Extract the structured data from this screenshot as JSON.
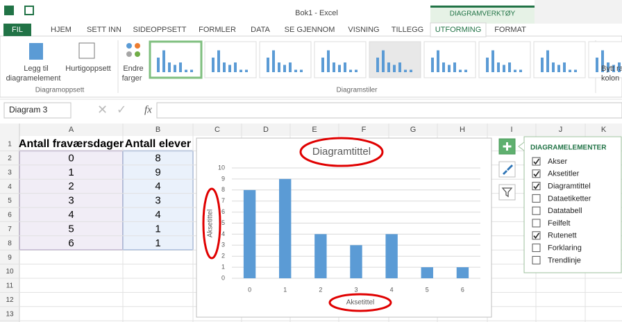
{
  "window": {
    "title": "Bok1 - Excel",
    "context_tab": "DIAGRAMVERKTØY"
  },
  "tabs": [
    "FIL",
    "HJEM",
    "SETT INN",
    "SIDEOPPSETT",
    "FORMLER",
    "DATA",
    "SE GJENNOM",
    "VISNING",
    "TILLEGG",
    "UTFORMING",
    "FORMAT"
  ],
  "active_tab": "UTFORMING",
  "ribbon": {
    "add_element": [
      "Legg til",
      "diagramelement"
    ],
    "quick_layout": "Hurtigoppsett",
    "group_layouts": "Diagramoppsett",
    "change_colors": [
      "Endre",
      "farger"
    ],
    "group_styles": "Diagramstiler",
    "switch": [
      "Bytt ra",
      "kolon"
    ]
  },
  "formula_bar": {
    "name_box": "Diagram 3",
    "fx": "fx"
  },
  "sheet": {
    "columns": [
      "A",
      "B",
      "C",
      "D",
      "E",
      "F",
      "G",
      "H",
      "I",
      "J",
      "K"
    ],
    "rows": [
      1,
      2,
      3,
      4,
      5,
      6,
      7,
      8,
      9,
      10,
      11,
      12,
      13
    ],
    "header": [
      "Antall fraværsdager",
      "Antall elever"
    ],
    "data": [
      [
        0,
        8
      ],
      [
        1,
        9
      ],
      [
        2,
        4
      ],
      [
        3,
        3
      ],
      [
        4,
        4
      ],
      [
        5,
        1
      ],
      [
        6,
        1
      ]
    ]
  },
  "chart": {
    "type": "bar",
    "title": "Diagramtittel",
    "x_label": "Aksetittel",
    "y_label": "Aksetittel",
    "categories": [
      "0",
      "1",
      "2",
      "3",
      "4",
      "5",
      "6"
    ],
    "values": [
      8,
      9,
      4,
      3,
      4,
      1,
      1
    ],
    "color": "#5b9bd5",
    "ylim": [
      0,
      10
    ],
    "yticks": [
      0,
      1,
      2,
      3,
      4,
      5,
      6,
      7,
      8,
      9,
      10
    ],
    "grid": true
  },
  "panel": {
    "title": "DIAGRAMELEMENTER",
    "items": [
      {
        "label": "Akser",
        "checked": true
      },
      {
        "label": "Aksetitler",
        "checked": true
      },
      {
        "label": "Diagramtittel",
        "checked": true
      },
      {
        "label": "Dataetiketter",
        "checked": false
      },
      {
        "label": "Datatabell",
        "checked": false
      },
      {
        "label": "Feilfelt",
        "checked": false
      },
      {
        "label": "Rutenett",
        "checked": true
      },
      {
        "label": "Forklaring",
        "checked": false
      },
      {
        "label": "Trendlinje",
        "checked": false
      }
    ]
  }
}
